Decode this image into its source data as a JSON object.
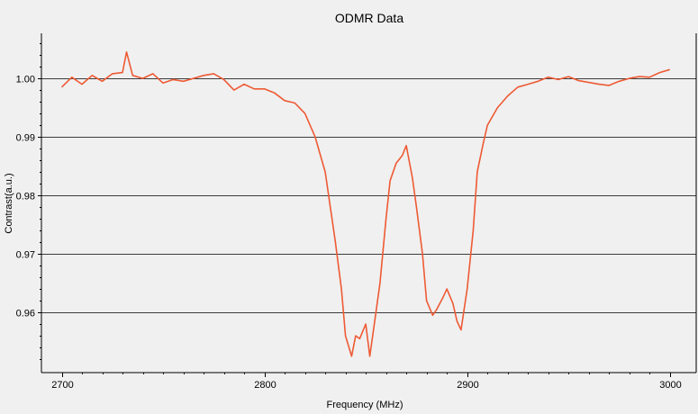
{
  "chart_data": {
    "type": "line",
    "title": "ODMR Data",
    "xlabel": "Frequency (MHz)",
    "ylabel": "Contrast(a.u.)",
    "xlim": [
      2690,
      3013
    ],
    "ylim": [
      0.9497,
      1.0077
    ],
    "x_ticks": [
      2700,
      2800,
      2900,
      3000
    ],
    "x_tick_labels": [
      "2700",
      "2800",
      "2900",
      "3000"
    ],
    "y_ticks": [
      0.96,
      0.97,
      0.98,
      0.99,
      1.0
    ],
    "y_tick_labels": [
      "0.96",
      "0.97",
      "0.98",
      "0.99",
      "1.00"
    ],
    "grid": "horizontal",
    "legend": "none",
    "series": [
      {
        "color": "#ee5a34",
        "x": [
          2700,
          2705,
          2710,
          2715,
          2720,
          2725,
          2730,
          2732,
          2735,
          2740,
          2745,
          2750,
          2755,
          2760,
          2765,
          2770,
          2775,
          2780,
          2785,
          2790,
          2795,
          2800,
          2805,
          2810,
          2815,
          2820,
          2825,
          2830,
          2835,
          2838,
          2840,
          2843,
          2845,
          2847,
          2850,
          2852,
          2855,
          2857,
          2860,
          2862,
          2865,
          2868,
          2870,
          2873,
          2875,
          2878,
          2880,
          2883,
          2885,
          2888,
          2890,
          2893,
          2895,
          2897,
          2900,
          2903,
          2905,
          2908,
          2910,
          2915,
          2920,
          2925,
          2930,
          2935,
          2940,
          2945,
          2950,
          2955,
          2960,
          2965,
          2970,
          2975,
          2980,
          2985,
          2990,
          2995,
          3000
        ],
        "y": [
          0.9985,
          1.0002,
          0.999,
          1.0005,
          0.9995,
          1.0008,
          1.001,
          1.0045,
          1.0005,
          1.0,
          1.0008,
          0.9992,
          0.9998,
          0.9995,
          1.0,
          1.0005,
          1.0008,
          0.9998,
          0.998,
          0.999,
          0.9982,
          0.9982,
          0.9975,
          0.9962,
          0.9958,
          0.994,
          0.99,
          0.984,
          0.972,
          0.964,
          0.956,
          0.9525,
          0.956,
          0.9555,
          0.958,
          0.9525,
          0.96,
          0.965,
          0.976,
          0.9825,
          0.9855,
          0.9868,
          0.9885,
          0.983,
          0.978,
          0.97,
          0.962,
          0.9595,
          0.9605,
          0.9625,
          0.964,
          0.9615,
          0.9585,
          0.957,
          0.964,
          0.974,
          0.984,
          0.989,
          0.992,
          0.995,
          0.997,
          0.9985,
          0.999,
          0.9995,
          1.0002,
          0.9998,
          1.0003,
          0.9996,
          0.9993,
          0.999,
          0.9988,
          0.9995,
          1.0,
          1.0003,
          1.0002,
          1.001,
          1.0015
        ]
      }
    ]
  }
}
